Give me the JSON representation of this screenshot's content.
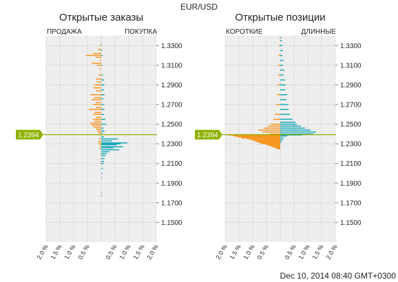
{
  "pair": "EUR/USD",
  "timestamp": "Dec 10, 2014 08:40 GMT+0300",
  "current_price": "1.2394",
  "colors": {
    "left_side": "#f7941d",
    "right_side": "#16a9b8",
    "price_line": "#8db300",
    "plot_bg": "#eeeeee"
  },
  "chart_data": [
    {
      "type": "bar",
      "title": "Открытые заказы",
      "left_label": "ПРОДАЖА",
      "right_label": "ПОКУПКА",
      "x_ticks": [
        "2.0 %",
        "1.5 %",
        "1.0 %",
        "0.5 %",
        "",
        "0.5 %",
        "1.0 %",
        "1.5 %",
        "2.0 %"
      ],
      "y_ticks": [
        "1.3300",
        "1.3100",
        "1.2900",
        "1.2700",
        "1.2500",
        "1.2300",
        "1.2100",
        "1.1900",
        "1.1700",
        "1.1500"
      ],
      "ylim": [
        1.13,
        1.34
      ],
      "xlim": [
        -2.0,
        2.0
      ],
      "series": [
        {
          "name": "ПРОДАЖА",
          "points": [
            [
              1.338,
              0.02
            ],
            [
              1.33,
              0.05
            ],
            [
              1.326,
              0.12
            ],
            [
              1.322,
              0.3
            ],
            [
              1.32,
              0.55
            ],
            [
              1.318,
              0.2
            ],
            [
              1.315,
              0.05
            ],
            [
              1.312,
              0.35
            ],
            [
              1.31,
              0.15
            ],
            [
              1.306,
              0.06
            ],
            [
              1.3,
              0.1
            ],
            [
              1.296,
              0.2
            ],
            [
              1.293,
              0.15
            ],
            [
              1.29,
              0.25
            ],
            [
              1.287,
              0.3
            ],
            [
              1.284,
              0.18
            ],
            [
              1.28,
              0.4
            ],
            [
              1.277,
              0.25
            ],
            [
              1.275,
              0.35
            ],
            [
              1.272,
              0.2
            ],
            [
              1.27,
              0.3
            ],
            [
              1.267,
              0.2
            ],
            [
              1.265,
              0.45
            ],
            [
              1.262,
              0.25
            ],
            [
              1.26,
              0.3
            ],
            [
              1.257,
              0.2
            ],
            [
              1.255,
              0.3
            ],
            [
              1.253,
              0.25
            ],
            [
              1.251,
              0.4
            ],
            [
              1.249,
              0.35
            ],
            [
              1.247,
              0.28
            ],
            [
              1.245,
              0.2
            ],
            [
              1.243,
              0.15
            ],
            [
              1.241,
              0.1
            ],
            [
              1.239,
              0.05
            ],
            [
              1.235,
              0.08
            ],
            [
              1.232,
              0.12
            ],
            [
              1.23,
              0.1
            ],
            [
              1.228,
              0.05
            ],
            [
              1.225,
              0.06
            ],
            [
              1.22,
              0.03
            ],
            [
              1.215,
              0.02
            ],
            [
              1.21,
              0.02
            ],
            [
              1.178,
              0.02
            ],
            [
              1.176,
              0.02
            ]
          ]
        },
        {
          "name": "ПОКУПКА",
          "points": [
            [
              1.332,
              0.02
            ],
            [
              1.325,
              0.03
            ],
            [
              1.32,
              0.05
            ],
            [
              1.31,
              0.04
            ],
            [
              1.3,
              0.06
            ],
            [
              1.295,
              0.1
            ],
            [
              1.29,
              0.12
            ],
            [
              1.285,
              0.1
            ],
            [
              1.28,
              0.12
            ],
            [
              1.276,
              0.08
            ],
            [
              1.27,
              0.1
            ],
            [
              1.265,
              0.12
            ],
            [
              1.26,
              0.1
            ],
            [
              1.255,
              0.15
            ],
            [
              1.25,
              0.18
            ],
            [
              1.246,
              0.08
            ],
            [
              1.243,
              0.12
            ],
            [
              1.241,
              0.05
            ],
            [
              1.237,
              0.1
            ],
            [
              1.235,
              0.6
            ],
            [
              1.233,
              0.4
            ],
            [
              1.231,
              0.95
            ],
            [
              1.23,
              0.7
            ],
            [
              1.229,
              0.55
            ],
            [
              1.227,
              0.8
            ],
            [
              1.226,
              0.45
            ],
            [
              1.224,
              0.65
            ],
            [
              1.222,
              0.3
            ],
            [
              1.22,
              0.2
            ],
            [
              1.218,
              0.15
            ],
            [
              1.215,
              0.12
            ],
            [
              1.212,
              0.1
            ],
            [
              1.21,
              0.08
            ],
            [
              1.205,
              0.06
            ],
            [
              1.2,
              0.04
            ],
            [
              1.195,
              0.03
            ],
            [
              1.18,
              0.02
            ],
            [
              1.177,
              0.02
            ]
          ]
        }
      ]
    },
    {
      "type": "bar",
      "title": "Открытые позиции",
      "left_label": "КОРОТКИЕ",
      "right_label": "ДЛИННЫЕ",
      "x_ticks": [
        "2.0 %",
        "1.5 %",
        "1.0 %",
        "0.5 %",
        "",
        "0.5 %",
        "1.0 %",
        "1.5 %",
        "2.0 %"
      ],
      "y_ticks": [
        "1.3300",
        "1.3100",
        "1.2900",
        "1.2700",
        "1.2500",
        "1.2300",
        "1.2100",
        "1.1900",
        "1.1700",
        "1.1500"
      ],
      "ylim": [
        1.13,
        1.34
      ],
      "xlim": [
        -2.0,
        2.0
      ],
      "series": [
        {
          "name": "ДЛИННЫЕ",
          "points": [
            [
              1.338,
              0.04
            ],
            [
              1.335,
              0.06
            ],
            [
              1.33,
              0.08
            ],
            [
              1.325,
              0.1
            ],
            [
              1.32,
              0.08
            ],
            [
              1.315,
              0.12
            ],
            [
              1.31,
              0.1
            ],
            [
              1.305,
              0.15
            ],
            [
              1.3,
              0.12
            ],
            [
              1.295,
              0.18
            ],
            [
              1.29,
              0.2
            ],
            [
              1.285,
              0.18
            ],
            [
              1.28,
              0.25
            ],
            [
              1.275,
              0.22
            ],
            [
              1.27,
              0.3
            ],
            [
              1.265,
              0.3
            ],
            [
              1.26,
              0.35
            ],
            [
              1.255,
              0.45
            ],
            [
              1.252,
              0.55
            ],
            [
              1.25,
              0.6
            ],
            [
              1.248,
              0.75
            ],
            [
              1.246,
              0.9
            ],
            [
              1.244,
              1.1
            ],
            [
              1.242,
              1.3
            ],
            [
              1.24,
              1.2
            ],
            [
              1.239,
              0.8
            ]
          ]
        },
        {
          "name": "КОРОТКИЕ",
          "points": [
            [
              1.338,
              0.03
            ],
            [
              1.33,
              0.05
            ],
            [
              1.32,
              0.06
            ],
            [
              1.31,
              0.08
            ],
            [
              1.3,
              0.08
            ],
            [
              1.29,
              0.1
            ],
            [
              1.28,
              0.12
            ],
            [
              1.27,
              0.15
            ],
            [
              1.26,
              0.2
            ],
            [
              1.255,
              0.25
            ],
            [
              1.25,
              0.35
            ],
            [
              1.248,
              0.45
            ],
            [
              1.246,
              0.6
            ],
            [
              1.244,
              0.8
            ],
            [
              1.242,
              0.65
            ],
            [
              1.24,
              0.4
            ]
          ]
        },
        {
          "name": "ДЛИННЫЕ",
          "points": [
            [
              1.238,
              0.25
            ],
            [
              1.236,
              0.12
            ],
            [
              1.234,
              0.1
            ],
            [
              1.232,
              0.05
            ]
          ]
        },
        {
          "name": "КОРОТКИЕ",
          "points": [
            [
              1.239,
              1.9
            ],
            [
              1.238,
              1.7
            ],
            [
              1.237,
              1.55
            ],
            [
              1.236,
              1.4
            ],
            [
              1.235,
              1.2
            ],
            [
              1.234,
              1.05
            ],
            [
              1.233,
              0.95
            ],
            [
              1.232,
              0.85
            ],
            [
              1.231,
              0.75
            ],
            [
              1.23,
              0.65
            ],
            [
              1.229,
              0.5
            ],
            [
              1.228,
              0.4
            ],
            [
              1.227,
              0.3
            ],
            [
              1.226,
              0.2
            ],
            [
              1.225,
              0.12
            ]
          ]
        }
      ]
    }
  ]
}
